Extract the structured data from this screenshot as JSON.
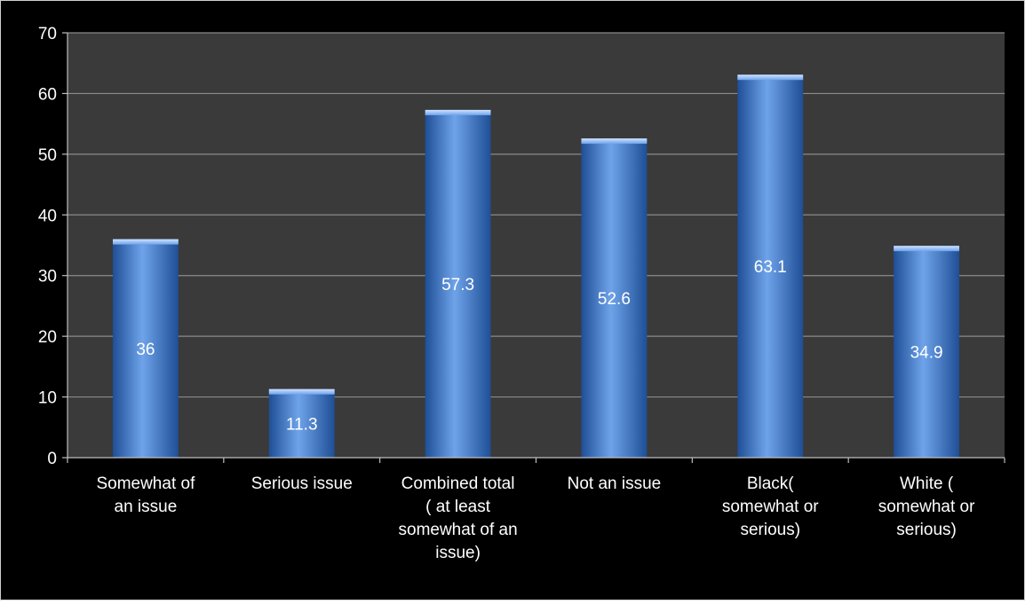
{
  "chart_data": {
    "type": "bar",
    "title": "",
    "xlabel": "",
    "ylabel": "",
    "categories": [
      [
        "Somewhat of",
        "an issue"
      ],
      [
        "Serious issue"
      ],
      [
        "Combined total",
        "( at least",
        "somewhat of an",
        "issue)"
      ],
      [
        "Not an issue"
      ],
      [
        "Black(",
        "somewhat or",
        "serious)"
      ],
      [
        "White (",
        "somewhat or",
        "serious)"
      ]
    ],
    "values": [
      36,
      11.3,
      57.3,
      52.6,
      63.1,
      34.9
    ],
    "data_labels": [
      "36",
      "11.3",
      "57.3",
      "52.6",
      "63.1",
      "34.9"
    ],
    "ylim": [
      0,
      70
    ],
    "yticks": [
      0,
      10,
      20,
      30,
      40,
      50,
      60,
      70
    ],
    "grid": true,
    "legend": "none",
    "colors": {
      "background": "#000000",
      "plot_area": "#3a3a3a",
      "bar": "#3b78d0",
      "bar_light": "#6ea3ea",
      "bar_dark": "#1f4f96",
      "gridline": "#8a8a8a",
      "axis": "#bfbfbf",
      "text": "#ffffff"
    }
  }
}
